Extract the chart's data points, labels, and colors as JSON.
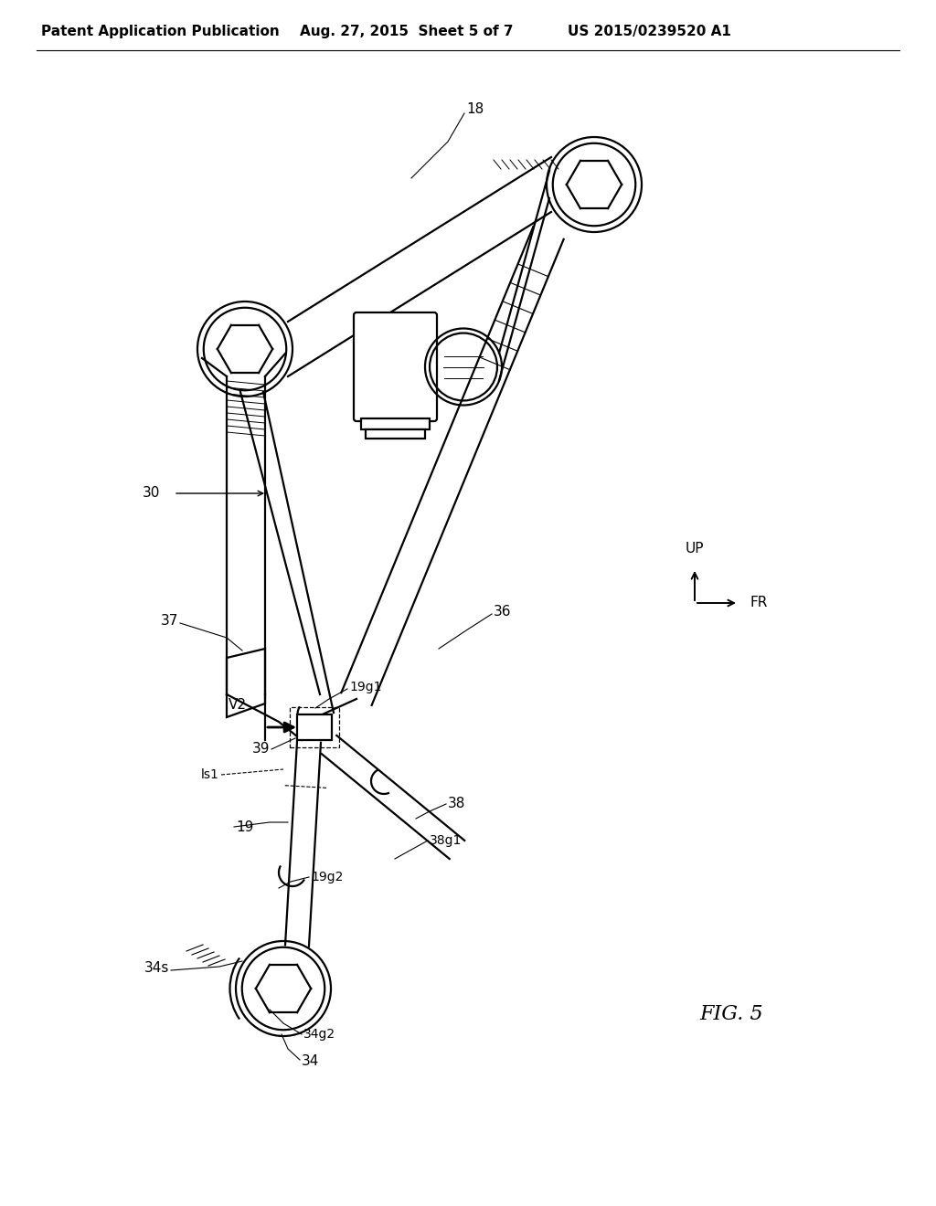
{
  "title_left": "Patent Application Publication",
  "title_mid": "Aug. 27, 2015  Sheet 5 of 7",
  "title_right": "US 2015/0239520 A1",
  "fig_label": "FIG. 5",
  "bg_color": "#ffffff",
  "line_color": "#000000",
  "header_font": 11,
  "fig_font": 16
}
